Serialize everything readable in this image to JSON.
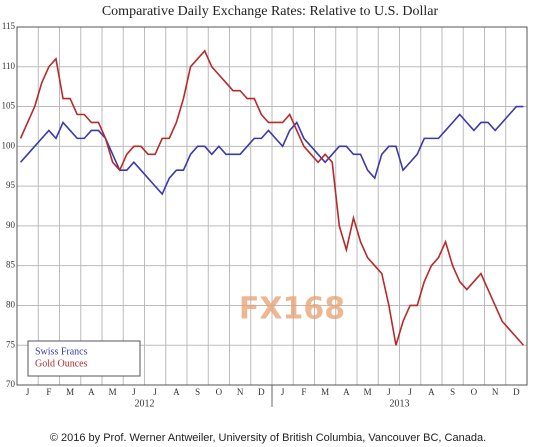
{
  "chart_data": {
    "type": "line",
    "title": "Comparative Daily Exchange Rates: Relative to U.S. Dollar",
    "categories": [
      null,
      "J",
      null,
      null,
      "F",
      null,
      null,
      "M",
      null,
      null,
      "A",
      null,
      null,
      "M",
      null,
      null,
      "J",
      null,
      null,
      "J",
      null,
      null,
      "A",
      null,
      null,
      "S",
      null,
      null,
      "O",
      null,
      null,
      "N",
      null,
      null,
      "D",
      null,
      null,
      "J",
      null,
      null,
      "F",
      null,
      null,
      "M",
      null,
      null,
      "A",
      null,
      null,
      "M",
      null,
      null,
      "J",
      null,
      null,
      "J",
      null,
      null,
      "A",
      null,
      null,
      "S",
      null,
      null,
      "O",
      null,
      null,
      "N",
      null,
      null,
      "D",
      null
    ],
    "year_labels": [
      "2012",
      "2013"
    ],
    "series": [
      {
        "name": "Swiss Francs",
        "color": "#3a3ab0",
        "values": [
          98,
          99,
          100,
          101,
          102,
          101,
          103,
          102,
          101,
          101,
          102,
          102,
          101,
          99,
          97,
          97,
          98,
          97,
          96,
          95,
          94,
          96,
          97,
          97,
          99,
          100,
          100,
          99,
          100,
          99,
          99,
          99,
          100,
          101,
          101,
          102,
          101,
          100,
          102,
          103,
          101,
          100,
          99,
          98,
          99,
          100,
          100,
          99,
          99,
          97,
          96,
          99,
          100,
          100,
          97,
          98,
          99,
          101,
          101,
          101,
          102,
          103,
          104,
          103,
          102,
          103,
          103,
          102,
          103,
          104,
          105,
          105
        ]
      },
      {
        "name": "Gold Ounces",
        "color": "#b82a2a",
        "values": [
          101,
          103,
          105,
          108,
          110,
          111,
          106,
          106,
          104,
          104,
          103,
          103,
          101,
          98,
          97,
          99,
          100,
          100,
          99,
          99,
          101,
          101,
          103,
          106,
          110,
          111,
          112,
          110,
          109,
          108,
          107,
          107,
          106,
          106,
          104,
          103,
          103,
          103,
          104,
          102,
          100,
          99,
          98,
          99,
          98,
          90,
          87,
          91,
          88,
          86,
          85,
          84,
          80,
          75,
          78,
          80,
          80,
          83,
          85,
          86,
          88,
          85,
          83,
          82,
          83,
          84,
          82,
          80,
          78,
          77,
          76,
          75
        ]
      }
    ],
    "ylim": [
      70,
      115
    ],
    "yticks": [
      70,
      75,
      80,
      85,
      90,
      95,
      100,
      105,
      110,
      115
    ],
    "grid": true,
    "watermark": "FX168",
    "footer": "© 2016 by Prof. Werner Antweiler, University of British Columbia, Vancouver BC, Canada."
  }
}
